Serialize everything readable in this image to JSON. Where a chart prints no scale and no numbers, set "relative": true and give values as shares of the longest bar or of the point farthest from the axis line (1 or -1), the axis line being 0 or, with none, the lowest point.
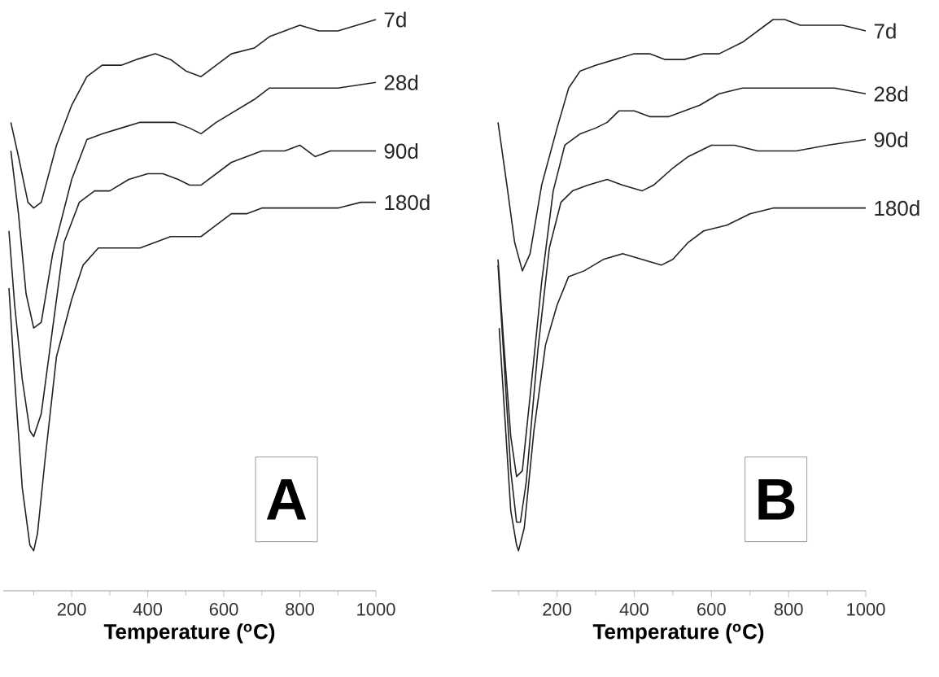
{
  "chart_data": [
    {
      "type": "line",
      "relative": true,
      "xlabel": "**Temperature ($^{o}$C)**",
      "xlim": [
        20,
        1000
      ],
      "xticks": [
        {
          "value": 100,
          "label": null
        },
        200,
        {
          "value": 300,
          "label": null
        },
        400,
        {
          "value": 500,
          "label": null
        },
        600,
        {
          "value": 700,
          "label": null
        },
        800,
        {
          "value": 900,
          "label": null
        },
        1000
      ],
      "annotations": [
        "A"
      ],
      "series": [
        {
          "name": "7d",
          "color": "#222222",
          "x": [
            40,
            60,
            85,
            100,
            120,
            160,
            200,
            240,
            280,
            330,
            370,
            420,
            460,
            500,
            540,
            580,
            620,
            680,
            720,
            760,
            800,
            850,
            900,
            950,
            1000
          ],
          "values": [
            0.82,
            0.76,
            0.68,
            0.67,
            0.68,
            0.78,
            0.85,
            0.9,
            0.92,
            0.92,
            0.93,
            0.94,
            0.93,
            0.91,
            0.9,
            0.92,
            0.94,
            0.95,
            0.97,
            0.98,
            0.99,
            0.98,
            0.98,
            0.99,
            1.0
          ]
        },
        {
          "name": "28d",
          "color": "#222222",
          "x": [
            40,
            60,
            80,
            100,
            120,
            150,
            200,
            240,
            280,
            330,
            380,
            430,
            470,
            510,
            540,
            580,
            630,
            680,
            720,
            760,
            850,
            900,
            1000
          ],
          "values": [
            0.77,
            0.66,
            0.52,
            0.46,
            0.47,
            0.59,
            0.72,
            0.79,
            0.8,
            0.81,
            0.82,
            0.82,
            0.82,
            0.81,
            0.8,
            0.82,
            0.84,
            0.86,
            0.88,
            0.88,
            0.88,
            0.88,
            0.89
          ]
        },
        {
          "name": "90d",
          "color": "#222222",
          "x": [
            35,
            50,
            70,
            90,
            100,
            120,
            150,
            180,
            220,
            260,
            300,
            350,
            400,
            440,
            480,
            510,
            540,
            580,
            620,
            660,
            700,
            760,
            800,
            840,
            880,
            940,
            1000
          ],
          "values": [
            0.63,
            0.5,
            0.37,
            0.28,
            0.27,
            0.31,
            0.46,
            0.61,
            0.68,
            0.7,
            0.7,
            0.72,
            0.73,
            0.73,
            0.72,
            0.71,
            0.71,
            0.73,
            0.75,
            0.76,
            0.77,
            0.77,
            0.78,
            0.76,
            0.77,
            0.77,
            0.77
          ]
        },
        {
          "name": "180d",
          "color": "#222222",
          "x": [
            35,
            50,
            70,
            90,
            100,
            110,
            130,
            160,
            200,
            230,
            270,
            320,
            380,
            420,
            460,
            500,
            540,
            580,
            620,
            660,
            700,
            760,
            840,
            900,
            960,
            1000
          ],
          "values": [
            0.53,
            0.37,
            0.18,
            0.08,
            0.07,
            0.1,
            0.23,
            0.41,
            0.51,
            0.57,
            0.6,
            0.6,
            0.6,
            0.61,
            0.62,
            0.62,
            0.62,
            0.64,
            0.66,
            0.66,
            0.67,
            0.67,
            0.67,
            0.67,
            0.68,
            0.68
          ]
        }
      ]
    },
    {
      "type": "line",
      "relative": true,
      "xlabel": "**Temperature ($^{o}$C)**",
      "xlim": [
        30,
        1000
      ],
      "xticks": [
        {
          "value": 100,
          "label": null
        },
        200,
        {
          "value": 300,
          "label": null
        },
        400,
        {
          "value": 500,
          "label": null
        },
        600,
        {
          "value": 700,
          "label": null
        },
        800,
        {
          "value": 900,
          "label": null
        },
        1000
      ],
      "annotations": [
        "B"
      ],
      "series": [
        {
          "name": "7d",
          "color": "#222222",
          "x": [
            47,
            70,
            90,
            110,
            130,
            160,
            200,
            230,
            260,
            300,
            350,
            400,
            440,
            480,
            530,
            580,
            620,
            680,
            720,
            760,
            790,
            830,
            880,
            940,
            1000
          ],
          "values": [
            0.82,
            0.71,
            0.61,
            0.56,
            0.59,
            0.71,
            0.81,
            0.88,
            0.91,
            0.92,
            0.93,
            0.94,
            0.94,
            0.93,
            0.93,
            0.94,
            0.94,
            0.96,
            0.98,
            1.0,
            1.0,
            0.99,
            0.99,
            0.99,
            0.98
          ]
        },
        {
          "name": "28d",
          "color": "#222222",
          "x": [
            47,
            60,
            80,
            95,
            110,
            130,
            160,
            190,
            220,
            260,
            300,
            330,
            360,
            400,
            440,
            490,
            530,
            570,
            620,
            680,
            740,
            800,
            860,
            920,
            1000
          ],
          "values": [
            0.58,
            0.45,
            0.27,
            0.2,
            0.21,
            0.34,
            0.54,
            0.7,
            0.78,
            0.8,
            0.81,
            0.82,
            0.84,
            0.84,
            0.83,
            0.83,
            0.84,
            0.85,
            0.87,
            0.88,
            0.88,
            0.88,
            0.88,
            0.88,
            0.87
          ]
        },
        {
          "name": "90d",
          "color": "#222222",
          "x": [
            47,
            60,
            80,
            95,
            105,
            120,
            150,
            180,
            210,
            240,
            280,
            330,
            370,
            420,
            450,
            500,
            540,
            600,
            660,
            720,
            760,
            820,
            900,
            1000
          ],
          "values": [
            0.57,
            0.43,
            0.21,
            0.12,
            0.12,
            0.19,
            0.42,
            0.6,
            0.68,
            0.7,
            0.71,
            0.72,
            0.71,
            0.7,
            0.71,
            0.74,
            0.76,
            0.78,
            0.78,
            0.77,
            0.77,
            0.77,
            0.78,
            0.79
          ]
        },
        {
          "name": "180d",
          "color": "#222222",
          "x": [
            50,
            65,
            80,
            95,
            100,
            115,
            140,
            170,
            200,
            230,
            270,
            320,
            370,
            420,
            470,
            500,
            540,
            580,
            640,
            700,
            760,
            820,
            880,
            940,
            1000
          ],
          "values": [
            0.46,
            0.3,
            0.14,
            0.08,
            0.07,
            0.11,
            0.28,
            0.43,
            0.5,
            0.55,
            0.56,
            0.58,
            0.59,
            0.58,
            0.57,
            0.58,
            0.61,
            0.63,
            0.64,
            0.66,
            0.67,
            0.67,
            0.67,
            0.67,
            0.67
          ]
        }
      ]
    }
  ]
}
